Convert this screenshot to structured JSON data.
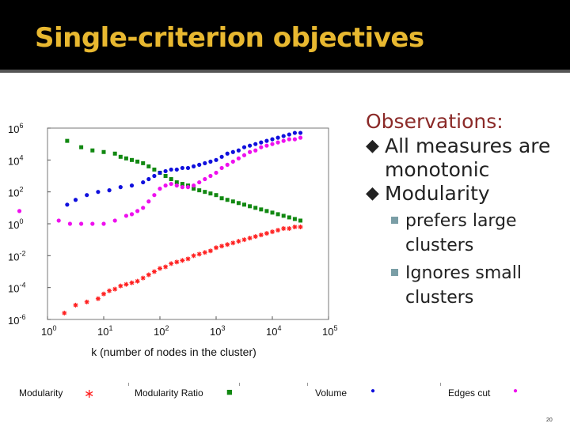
{
  "slide": {
    "title": "Single-criterion objectives",
    "page_number": "20"
  },
  "observations": {
    "heading": "Observations:",
    "bullet_glyph": "◆",
    "items": [
      {
        "text": "All measures are monotonic"
      },
      {
        "text": "Modularity"
      }
    ],
    "subitems": [
      {
        "text": "prefers large clusters"
      },
      {
        "text": "Ignores small clusters"
      }
    ]
  },
  "legend": [
    {
      "label": "Modularity",
      "marker": "∗",
      "color": "#ff2020"
    },
    {
      "label": "Modularity Ratio",
      "marker": "■",
      "color": "#118811"
    },
    {
      "label": "Volume",
      "marker": "●",
      "color": "#1010dd"
    },
    {
      "label": "Edges cut",
      "marker": "●",
      "color": "#ee10ee"
    }
  ],
  "chart_data": {
    "type": "scatter",
    "xlabel": "k (number of nodes in the cluster)",
    "ylabel": "",
    "x_scale": "log10",
    "y_scale": "log10",
    "xlim_exp": [
      0,
      5
    ],
    "ylim_exp": [
      -6,
      6
    ],
    "x_ticks": [
      {
        "base": "10",
        "exp": "0"
      },
      {
        "base": "10",
        "exp": "1"
      },
      {
        "base": "10",
        "exp": "2"
      },
      {
        "base": "10",
        "exp": "3"
      },
      {
        "base": "10",
        "exp": "4"
      },
      {
        "base": "10",
        "exp": "5"
      }
    ],
    "y_ticks": [
      {
        "base": "10",
        "exp": "-6"
      },
      {
        "base": "10",
        "exp": "-4"
      },
      {
        "base": "10",
        "exp": "-2"
      },
      {
        "base": "10",
        "exp": "0"
      },
      {
        "base": "10",
        "exp": "2"
      },
      {
        "base": "10",
        "exp": "4"
      },
      {
        "base": "10",
        "exp": "6"
      }
    ],
    "series": [
      {
        "name": "Modularity",
        "color": "#ff2020",
        "marker": "star",
        "points": [
          [
            0.3,
            -5.6
          ],
          [
            0.5,
            -5.1
          ],
          [
            0.7,
            -4.9
          ],
          [
            0.9,
            -4.7
          ],
          [
            1.0,
            -4.4
          ],
          [
            1.1,
            -4.2
          ],
          [
            1.2,
            -4.1
          ],
          [
            1.3,
            -3.9
          ],
          [
            1.4,
            -3.8
          ],
          [
            1.5,
            -3.7
          ],
          [
            1.6,
            -3.6
          ],
          [
            1.7,
            -3.4
          ],
          [
            1.8,
            -3.2
          ],
          [
            1.9,
            -3.0
          ],
          [
            2.0,
            -2.8
          ],
          [
            2.1,
            -2.7
          ],
          [
            2.2,
            -2.5
          ],
          [
            2.3,
            -2.4
          ],
          [
            2.4,
            -2.3
          ],
          [
            2.5,
            -2.2
          ],
          [
            2.6,
            -2.0
          ],
          [
            2.7,
            -1.9
          ],
          [
            2.8,
            -1.8
          ],
          [
            2.9,
            -1.7
          ],
          [
            3.0,
            -1.5
          ],
          [
            3.1,
            -1.4
          ],
          [
            3.2,
            -1.3
          ],
          [
            3.3,
            -1.2
          ],
          [
            3.4,
            -1.1
          ],
          [
            3.5,
            -1.0
          ],
          [
            3.6,
            -0.9
          ],
          [
            3.7,
            -0.8
          ],
          [
            3.8,
            -0.7
          ],
          [
            3.9,
            -0.6
          ],
          [
            4.0,
            -0.5
          ],
          [
            4.1,
            -0.4
          ],
          [
            4.2,
            -0.3
          ],
          [
            4.3,
            -0.3
          ],
          [
            4.4,
            -0.2
          ],
          [
            4.5,
            -0.2
          ]
        ]
      },
      {
        "name": "Modularity Ratio",
        "color": "#118811",
        "marker": "square",
        "points": [
          [
            0.35,
            5.2
          ],
          [
            0.6,
            4.8
          ],
          [
            0.8,
            4.6
          ],
          [
            1.0,
            4.5
          ],
          [
            1.2,
            4.4
          ],
          [
            1.3,
            4.2
          ],
          [
            1.4,
            4.1
          ],
          [
            1.5,
            4.0
          ],
          [
            1.6,
            3.9
          ],
          [
            1.7,
            3.8
          ],
          [
            1.8,
            3.6
          ],
          [
            1.9,
            3.4
          ],
          [
            2.0,
            3.2
          ],
          [
            2.1,
            3.0
          ],
          [
            2.2,
            2.8
          ],
          [
            2.3,
            2.6
          ],
          [
            2.4,
            2.5
          ],
          [
            2.5,
            2.4
          ],
          [
            2.6,
            2.2
          ],
          [
            2.7,
            2.1
          ],
          [
            2.8,
            2.0
          ],
          [
            2.9,
            1.9
          ],
          [
            3.0,
            1.8
          ],
          [
            3.1,
            1.6
          ],
          [
            3.2,
            1.5
          ],
          [
            3.3,
            1.4
          ],
          [
            3.4,
            1.3
          ],
          [
            3.5,
            1.2
          ],
          [
            3.6,
            1.1
          ],
          [
            3.7,
            1.0
          ],
          [
            3.8,
            0.9
          ],
          [
            3.9,
            0.8
          ],
          [
            4.0,
            0.7
          ],
          [
            4.1,
            0.6
          ],
          [
            4.2,
            0.5
          ],
          [
            4.3,
            0.4
          ],
          [
            4.4,
            0.3
          ],
          [
            4.5,
            0.2
          ]
        ]
      },
      {
        "name": "Volume",
        "color": "#1010dd",
        "marker": "circle",
        "points": [
          [
            0.35,
            1.2
          ],
          [
            0.5,
            1.5
          ],
          [
            0.7,
            1.8
          ],
          [
            0.9,
            2.0
          ],
          [
            1.1,
            2.1
          ],
          [
            1.3,
            2.3
          ],
          [
            1.5,
            2.4
          ],
          [
            1.7,
            2.6
          ],
          [
            1.8,
            2.8
          ],
          [
            1.9,
            3.0
          ],
          [
            2.0,
            3.2
          ],
          [
            2.1,
            3.3
          ],
          [
            2.2,
            3.4
          ],
          [
            2.3,
            3.4
          ],
          [
            2.4,
            3.5
          ],
          [
            2.5,
            3.5
          ],
          [
            2.6,
            3.6
          ],
          [
            2.7,
            3.7
          ],
          [
            2.8,
            3.8
          ],
          [
            2.9,
            3.9
          ],
          [
            3.0,
            4.0
          ],
          [
            3.1,
            4.2
          ],
          [
            3.2,
            4.4
          ],
          [
            3.3,
            4.5
          ],
          [
            3.4,
            4.6
          ],
          [
            3.5,
            4.8
          ],
          [
            3.6,
            4.9
          ],
          [
            3.7,
            5.0
          ],
          [
            3.8,
            5.1
          ],
          [
            3.9,
            5.2
          ],
          [
            4.0,
            5.3
          ],
          [
            4.1,
            5.4
          ],
          [
            4.2,
            5.5
          ],
          [
            4.3,
            5.6
          ],
          [
            4.4,
            5.7
          ],
          [
            4.5,
            5.7
          ]
        ]
      },
      {
        "name": "Edges cut",
        "color": "#ee10ee",
        "marker": "circle",
        "points": [
          [
            -0.5,
            0.8
          ],
          [
            0.2,
            0.2
          ],
          [
            0.4,
            0.0
          ],
          [
            0.6,
            0.0
          ],
          [
            0.8,
            0.0
          ],
          [
            1.0,
            0.0
          ],
          [
            1.2,
            0.2
          ],
          [
            1.4,
            0.5
          ],
          [
            1.5,
            0.6
          ],
          [
            1.6,
            0.8
          ],
          [
            1.7,
            1.0
          ],
          [
            1.8,
            1.4
          ],
          [
            1.9,
            1.8
          ],
          [
            2.0,
            2.2
          ],
          [
            2.1,
            2.4
          ],
          [
            2.2,
            2.5
          ],
          [
            2.3,
            2.4
          ],
          [
            2.4,
            2.3
          ],
          [
            2.5,
            2.3
          ],
          [
            2.6,
            2.4
          ],
          [
            2.7,
            2.6
          ],
          [
            2.8,
            2.8
          ],
          [
            2.9,
            3.0
          ],
          [
            3.0,
            3.2
          ],
          [
            3.1,
            3.5
          ],
          [
            3.2,
            3.7
          ],
          [
            3.3,
            3.9
          ],
          [
            3.4,
            4.1
          ],
          [
            3.5,
            4.3
          ],
          [
            3.6,
            4.5
          ],
          [
            3.7,
            4.6
          ],
          [
            3.8,
            4.8
          ],
          [
            3.9,
            4.9
          ],
          [
            4.0,
            5.0
          ],
          [
            4.1,
            5.1
          ],
          [
            4.2,
            5.2
          ],
          [
            4.3,
            5.3
          ],
          [
            4.4,
            5.3
          ],
          [
            4.5,
            5.4
          ]
        ]
      }
    ]
  }
}
